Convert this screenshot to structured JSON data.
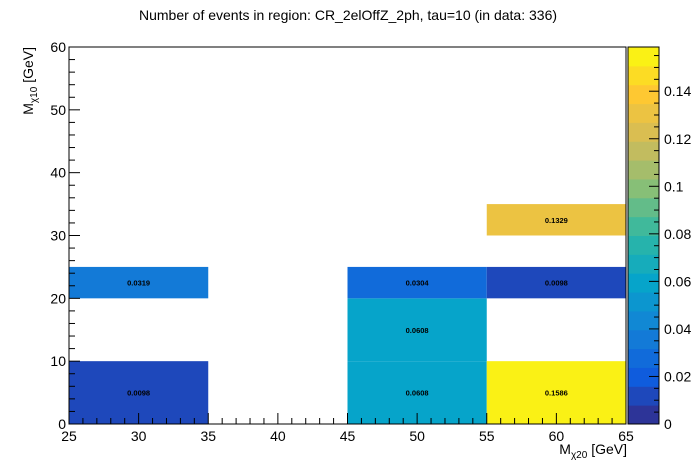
{
  "chart_data": {
    "type": "heatmap",
    "title": "Number of events in region: CR_2elOffZ_2ph, tau=10 (in data: 336)",
    "xlabel_main": "M",
    "xlabel_sub": "χ20",
    "xlabel_unit": " [GeV]",
    "ylabel_main": "M",
    "ylabel_sub": "χ10",
    "ylabel_unit": " [GeV]",
    "xlim": [
      25,
      65
    ],
    "ylim": [
      0,
      60
    ],
    "x_ticks": [
      "25",
      "30",
      "35",
      "40",
      "45",
      "50",
      "55",
      "60",
      "65"
    ],
    "y_ticks": [
      "0",
      "10",
      "20",
      "30",
      "40",
      "50",
      "60"
    ],
    "z_range": [
      0,
      0.1586
    ],
    "colorbar_ticks": [
      "0",
      "0.02",
      "0.04",
      "0.06",
      "0.08",
      "0.1",
      "0.12",
      "0.14"
    ],
    "cells": [
      {
        "x0": 25,
        "x1": 35,
        "y0": 0,
        "y1": 10,
        "value": 0.0098,
        "label": "0.0098"
      },
      {
        "x0": 25,
        "x1": 35,
        "y0": 20,
        "y1": 25,
        "value": 0.0319,
        "label": "0.0319"
      },
      {
        "x0": 45,
        "x1": 55,
        "y0": 0,
        "y1": 10,
        "value": 0.0608,
        "label": "0.0608"
      },
      {
        "x0": 45,
        "x1": 55,
        "y0": 10,
        "y1": 20,
        "value": 0.0608,
        "label": "0.0608"
      },
      {
        "x0": 45,
        "x1": 55,
        "y0": 20,
        "y1": 25,
        "value": 0.0304,
        "label": "0.0304"
      },
      {
        "x0": 55,
        "x1": 65,
        "y0": 0,
        "y1": 10,
        "value": 0.1586,
        "label": "0.1586"
      },
      {
        "x0": 55,
        "x1": 65,
        "y0": 20,
        "y1": 25,
        "value": 0.0098,
        "label": "0.0098"
      },
      {
        "x0": 55,
        "x1": 65,
        "y0": 30,
        "y1": 35,
        "value": 0.1329,
        "label": "0.1329"
      }
    ],
    "palette": [
      "#352a87",
      "#0f5cdd",
      "#1481d6",
      "#06a4ca",
      "#2eb7a4",
      "#87bf77",
      "#d1bb59",
      "#fec832",
      "#f9fb0e"
    ]
  }
}
